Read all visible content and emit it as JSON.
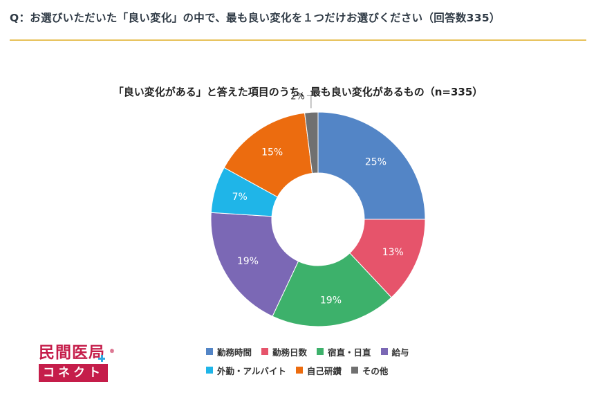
{
  "header": {
    "question": "Q：お選びいただいた「良い変化」の中で、最も良い変化を１つだけお選びください（回答数335）"
  },
  "chart_data": {
    "type": "pie",
    "donut": true,
    "title": "「良い変化がある」と答えた項目のうち、最も良い変化があるもの（n=335）",
    "categories": [
      "勤務時間",
      "勤務日数",
      "宿直・日直",
      "給与",
      "外勤・アルバイト",
      "自己研鑽",
      "その他"
    ],
    "values": [
      25,
      13,
      19,
      19,
      7,
      15,
      2
    ],
    "labels": [
      "25%",
      "13%",
      "19%",
      "19%",
      "7%",
      "15%",
      "2%"
    ],
    "colors": [
      "#5385c6",
      "#e6546b",
      "#3db16b",
      "#7b68b5",
      "#1fb5e8",
      "#ec6c0f",
      "#707070"
    ],
    "start": "12 o'clock",
    "direction": "clockwise",
    "legend_position": "bottom"
  },
  "logo": {
    "line1": "民間医局",
    "line2": "コネクト",
    "mark": "®"
  }
}
